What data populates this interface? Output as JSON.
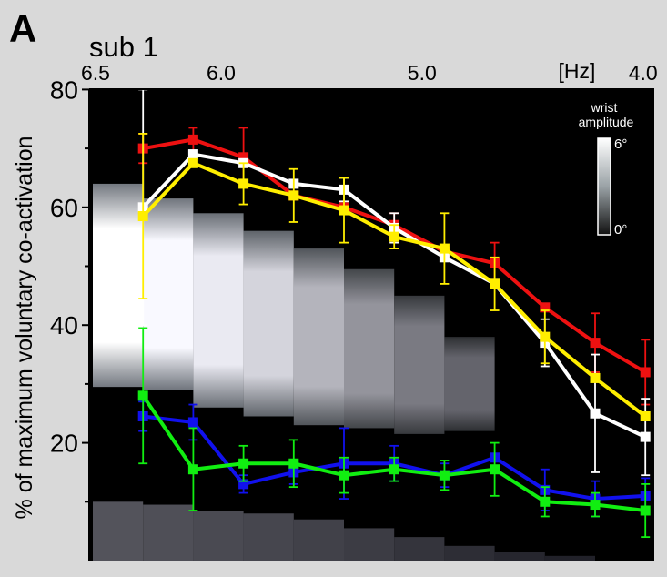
{
  "chart_data": {
    "type": "line",
    "panel_label": "A",
    "title": "sub 1",
    "ylabel": "% of maximum voluntary co-activation",
    "ylim": [
      0,
      80
    ],
    "yticks": [
      20,
      40,
      60,
      80
    ],
    "xlim": [
      0,
      11
    ],
    "top_axis": {
      "unit_label": "[Hz]",
      "ticks": [
        {
          "label": "6.5",
          "x": 0
        },
        {
          "label": "6.0",
          "x": 2.5
        },
        {
          "label": "5.0",
          "x": 6.5
        },
        {
          "label": "4.0",
          "x": 10.9
        }
      ]
    },
    "legend": {
      "title_line1": "wrist",
      "title_line2": "amplitude",
      "max_label": "6°",
      "min_label": "0°"
    },
    "x": [
      1,
      2,
      3,
      4,
      5,
      6,
      7,
      8,
      9,
      10,
      11
    ],
    "series": [
      {
        "name": "red",
        "color": "#ee1111",
        "values": [
          70,
          71.5,
          68.5,
          62,
          60,
          57,
          52.5,
          50.5,
          43,
          37,
          32
        ],
        "errors": [
          2.5,
          2,
          5,
          0,
          0,
          2,
          0,
          3.5,
          0,
          5,
          5.5
        ]
      },
      {
        "name": "white",
        "color": "#ffffff",
        "values": [
          60,
          69,
          67.5,
          64,
          63,
          56.5,
          51.5,
          47,
          37,
          25,
          21
        ],
        "errors": [
          20,
          0,
          0,
          0,
          2,
          2.5,
          0,
          0,
          4,
          10,
          6.5
        ]
      },
      {
        "name": "yellow",
        "color": "#ffee00",
        "values": [
          58.5,
          67.5,
          64,
          62,
          59.5,
          55,
          53,
          47,
          38,
          31,
          24.5
        ],
        "errors": [
          14,
          0,
          3.5,
          4.5,
          5.5,
          2,
          6,
          4.5,
          4.5,
          0,
          0
        ]
      },
      {
        "name": "blue",
        "color": "#1111ee",
        "values": [
          24.5,
          23.5,
          13,
          15,
          16.5,
          16.5,
          14.5,
          17.5,
          12,
          10.5,
          11
        ],
        "errors": [
          2.5,
          3,
          1.5,
          2,
          6,
          3,
          2,
          0,
          3.5,
          3,
          3
        ]
      },
      {
        "name": "green",
        "color": "#11ee11",
        "values": [
          28,
          15.5,
          16.5,
          16.5,
          14.5,
          15.5,
          14.5,
          15.5,
          10,
          9.5,
          8.5
        ],
        "errors": [
          11.5,
          7,
          3,
          4,
          3,
          2,
          2.5,
          4.5,
          2.5,
          2,
          4.5
        ]
      }
    ],
    "heatmap": {
      "description": "wrist amplitude map in background",
      "upper_bands": [
        {
          "x0": 0,
          "x1": 1,
          "y0": 29.5,
          "y1": 64,
          "intensity": 1.0
        },
        {
          "x0": 1,
          "x1": 2,
          "y0": 29,
          "y1": 61.5,
          "intensity": 0.97
        },
        {
          "x0": 2,
          "x1": 3,
          "y0": 26,
          "y1": 59,
          "intensity": 0.9
        },
        {
          "x0": 3,
          "x1": 4,
          "y0": 24.5,
          "y1": 56,
          "intensity": 0.8
        },
        {
          "x0": 4,
          "x1": 5,
          "y0": 23,
          "y1": 53,
          "intensity": 0.65
        },
        {
          "x0": 5,
          "x1": 6,
          "y0": 22.5,
          "y1": 49.5,
          "intensity": 0.5
        },
        {
          "x0": 6,
          "x1": 7,
          "y0": 21.5,
          "y1": 45,
          "intensity": 0.38
        },
        {
          "x0": 7,
          "x1": 8,
          "y0": 22,
          "y1": 38,
          "intensity": 0.28
        }
      ],
      "lower_bands": [
        {
          "x0": 0,
          "x1": 1,
          "y0": 0,
          "y1": 10,
          "intensity": 0.35
        },
        {
          "x0": 1,
          "x1": 2,
          "y0": 0,
          "y1": 9.5,
          "intensity": 0.33
        },
        {
          "x0": 2,
          "x1": 3,
          "y0": 0,
          "y1": 8.5,
          "intensity": 0.3
        },
        {
          "x0": 3,
          "x1": 4,
          "y0": 0,
          "y1": 8,
          "intensity": 0.28
        },
        {
          "x0": 4,
          "x1": 5,
          "y0": 0,
          "y1": 7,
          "intensity": 0.25
        },
        {
          "x0": 5,
          "x1": 6,
          "y0": 0,
          "y1": 5.5,
          "intensity": 0.22
        },
        {
          "x0": 6,
          "x1": 7,
          "y0": 0,
          "y1": 4,
          "intensity": 0.18
        },
        {
          "x0": 7,
          "x1": 8,
          "y0": 0,
          "y1": 2.5,
          "intensity": 0.14
        },
        {
          "x0": 8,
          "x1": 9,
          "y0": 0,
          "y1": 1.5,
          "intensity": 0.1
        },
        {
          "x0": 9,
          "x1": 10,
          "y0": 0,
          "y1": 0.8,
          "intensity": 0.07
        }
      ]
    }
  }
}
